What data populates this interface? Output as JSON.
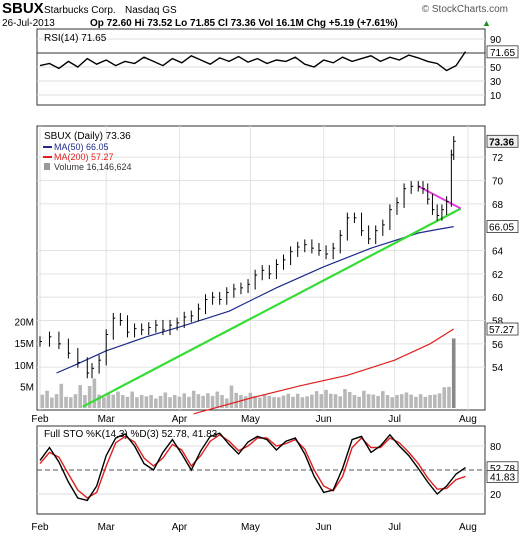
{
  "header": {
    "symbol": "SBUX",
    "company": "Starbucks Corp.",
    "exchange": "Nasdaq GS",
    "watermark": "© StockCharts.com",
    "date": "26-Jul-2013",
    "quote": "Op 72.60  Hi 73.52  Lo 71.85  Cl 73.36  Vol 16.1M  Chg +5.19 (+7.61%)",
    "chg_arrow": "▲"
  },
  "legends": {
    "rsi": "RSI(14) 71.65",
    "price": "SBUX (Daily) 73.36",
    "ma50": "MA(50) 66.05",
    "ma200": "MA(200) 57.27",
    "volume": "Volume 16,146,624",
    "sto": "Full STO %K(14,3) %D(3) 52.78, 41.83"
  },
  "colors": {
    "price_bars": "#000000",
    "ma50": "#1f2a8c",
    "ma200": "#e02020",
    "trendline": "#33dd33",
    "resistance": "#e040e0",
    "volume": "#b8b8b8",
    "rsi_fill": "#3aa63a",
    "sto_k": "#000000",
    "sto_d": "#e02020"
  },
  "chart_data": [
    {
      "type": "line",
      "name": "RSI(14)",
      "ylim": [
        0,
        100
      ],
      "ticks": [
        {
          "label": "90",
          "v": 90
        },
        {
          "label": "71.65",
          "v": 71.65,
          "badge": true
        },
        {
          "label": "50",
          "v": 50
        },
        {
          "label": "30",
          "v": 30
        },
        {
          "label": "10",
          "v": 10
        }
      ],
      "guides": [
        70,
        30
      ],
      "dashed": [
        50
      ],
      "last": 71.65,
      "x": [
        0,
        4,
        8,
        12,
        16,
        20,
        24,
        28,
        32,
        36,
        40,
        44,
        48,
        52,
        56,
        60,
        64,
        68,
        72,
        76,
        80,
        84,
        88,
        92,
        96,
        100,
        104,
        108,
        112,
        116,
        120,
        124,
        128,
        132,
        136,
        140,
        144,
        148,
        152,
        156,
        160,
        164,
        168,
        172,
        176,
        180
      ],
      "values": [
        52,
        55,
        48,
        58,
        50,
        62,
        54,
        60,
        52,
        58,
        55,
        64,
        58,
        52,
        62,
        56,
        66,
        60,
        54,
        63,
        58,
        65,
        57,
        62,
        55,
        60,
        58,
        64,
        54,
        50,
        60,
        56,
        64,
        58,
        62,
        66,
        58,
        64,
        60,
        67,
        63,
        58,
        55,
        45,
        52,
        72
      ]
    },
    {
      "type": "line",
      "name": "SBUX (Daily)",
      "ylim": [
        50.5,
        74.5
      ],
      "ticks": [
        {
          "label": "73.36",
          "v": 73.36,
          "badge": true
        },
        {
          "label": "72",
          "v": 72
        },
        {
          "label": "70",
          "v": 70
        },
        {
          "label": "68",
          "v": 68
        },
        {
          "label": "66.05",
          "v": 66.05,
          "badge": true
        },
        {
          "label": "64",
          "v": 64
        },
        {
          "label": "62",
          "v": 62
        },
        {
          "label": "60",
          "v": 60
        },
        {
          "label": "58",
          "v": 58
        },
        {
          "label": "57.27",
          "v": 57.27,
          "badge": true
        },
        {
          "label": "56",
          "v": 56
        },
        {
          "label": "54",
          "v": 54
        }
      ],
      "x_labels": [
        {
          "label": "Feb",
          "x": 0
        },
        {
          "label": "Mar",
          "x": 28
        },
        {
          "label": "Apr",
          "x": 59
        },
        {
          "label": "May",
          "x": 89
        },
        {
          "label": "Jun",
          "x": 120
        },
        {
          "label": "Jul",
          "x": 150
        },
        {
          "label": "Aug",
          "x": 181
        }
      ],
      "x_max": 184,
      "close": [
        [
          0,
          56.2
        ],
        [
          4,
          56.6
        ],
        [
          8,
          56.0
        ],
        [
          12,
          55.2
        ],
        [
          16,
          54.4
        ],
        [
          20,
          53.5
        ],
        [
          22,
          53.9
        ],
        [
          25,
          54.6
        ],
        [
          28,
          56.8
        ],
        [
          31,
          58.2
        ],
        [
          34,
          58.0
        ],
        [
          37,
          57.0
        ],
        [
          40,
          57.3
        ],
        [
          43,
          57.2
        ],
        [
          46,
          57.4
        ],
        [
          49,
          57.6
        ],
        [
          52,
          57.2
        ],
        [
          55,
          57.6
        ],
        [
          58,
          57.8
        ],
        [
          61,
          58.3
        ],
        [
          64,
          58.4
        ],
        [
          67,
          59.0
        ],
        [
          70,
          59.8
        ],
        [
          73,
          60.0
        ],
        [
          76,
          59.8
        ],
        [
          79,
          60.4
        ],
        [
          82,
          60.7
        ],
        [
          85,
          60.8
        ],
        [
          88,
          61.1
        ],
        [
          91,
          61.9
        ],
        [
          94,
          62.3
        ],
        [
          97,
          62.0
        ],
        [
          100,
          62.8
        ],
        [
          103,
          63.2
        ],
        [
          106,
          63.9
        ],
        [
          109,
          64.3
        ],
        [
          112,
          64.5
        ],
        [
          115,
          64.2
        ],
        [
          118,
          64.0
        ],
        [
          121,
          63.7
        ],
        [
          124,
          64.2
        ],
        [
          127,
          65.3
        ],
        [
          130,
          66.8
        ],
        [
          133,
          66.8
        ],
        [
          136,
          65.7
        ],
        [
          139,
          65.0
        ],
        [
          142,
          65.7
        ],
        [
          145,
          66.2
        ],
        [
          148,
          67.5
        ],
        [
          151,
          68.1
        ],
        [
          154,
          69.3
        ],
        [
          157,
          69.5
        ],
        [
          160,
          69.5
        ],
        [
          162,
          69.3
        ],
        [
          164,
          68.4
        ],
        [
          166,
          67.5
        ],
        [
          168,
          67.0
        ],
        [
          170,
          67.5
        ],
        [
          172,
          68.2
        ],
        [
          174,
          72.2
        ],
        [
          175,
          73.36
        ]
      ],
      "ma50": [
        [
          7,
          53.5
        ],
        [
          15,
          54.2
        ],
        [
          28,
          55.4
        ],
        [
          45,
          56.6
        ],
        [
          60,
          57.5
        ],
        [
          80,
          58.8
        ],
        [
          100,
          60.8
        ],
        [
          120,
          62.6
        ],
        [
          140,
          64.2
        ],
        [
          160,
          65.5
        ],
        [
          168,
          65.8
        ],
        [
          175,
          66.05
        ]
      ],
      "ma200": [
        [
          65,
          50.0
        ],
        [
          90,
          51.4
        ],
        [
          110,
          52.4
        ],
        [
          130,
          53.3
        ],
        [
          150,
          54.6
        ],
        [
          165,
          56.0
        ],
        [
          175,
          57.27
        ]
      ],
      "trendline": [
        [
          18,
          50.6
        ],
        [
          178,
          67.6
        ]
      ],
      "resistance": [
        [
          160,
          69.5
        ],
        [
          178,
          67.6
        ]
      ],
      "volume_ticks": [
        {
          "label": "20M",
          "v": 20
        },
        {
          "label": "15M",
          "v": 15
        },
        {
          "label": "10M",
          "v": 10
        },
        {
          "label": "5M",
          "v": 5
        }
      ],
      "volume_ylim": [
        0,
        25
      ],
      "volume_last": 16.1,
      "volume": [
        [
          1,
          3.1
        ],
        [
          3,
          4.0
        ],
        [
          5,
          2.4
        ],
        [
          7,
          3.2
        ],
        [
          9,
          5.6
        ],
        [
          11,
          2.6
        ],
        [
          13,
          2.5
        ],
        [
          15,
          3.2
        ],
        [
          17,
          5.3
        ],
        [
          19,
          3.0
        ],
        [
          21,
          5.1
        ],
        [
          23,
          6.8
        ],
        [
          25,
          3.1
        ],
        [
          27,
          2.5
        ],
        [
          29,
          3.4
        ],
        [
          31,
          3.1
        ],
        [
          33,
          3.8
        ],
        [
          35,
          3.0
        ],
        [
          37,
          2.6
        ],
        [
          39,
          3.8
        ],
        [
          41,
          2.5
        ],
        [
          43,
          3.0
        ],
        [
          45,
          2.7
        ],
        [
          47,
          3.0
        ],
        [
          49,
          2.2
        ],
        [
          51,
          2.8
        ],
        [
          53,
          3.6
        ],
        [
          55,
          2.5
        ],
        [
          57,
          3.0
        ],
        [
          59,
          2.6
        ],
        [
          61,
          3.4
        ],
        [
          63,
          2.6
        ],
        [
          65,
          4.0
        ],
        [
          67,
          3.2
        ],
        [
          69,
          2.8
        ],
        [
          71,
          3.4
        ],
        [
          73,
          2.8
        ],
        [
          75,
          3.8
        ],
        [
          77,
          3.0
        ],
        [
          79,
          2.2
        ],
        [
          81,
          5.2
        ],
        [
          83,
          3.5
        ],
        [
          85,
          3.0
        ],
        [
          87,
          2.7
        ],
        [
          89,
          3.5
        ],
        [
          91,
          2.8
        ],
        [
          93,
          2.4
        ],
        [
          95,
          3.2
        ],
        [
          97,
          2.8
        ],
        [
          99,
          2.5
        ],
        [
          101,
          2.5
        ],
        [
          103,
          2.9
        ],
        [
          105,
          3.3
        ],
        [
          107,
          2.6
        ],
        [
          109,
          3.3
        ],
        [
          111,
          2.5
        ],
        [
          113,
          2.7
        ],
        [
          115,
          3.1
        ],
        [
          117,
          3.9
        ],
        [
          119,
          3.2
        ],
        [
          121,
          4.2
        ],
        [
          123,
          3.3
        ],
        [
          125,
          3.2
        ],
        [
          127,
          2.7
        ],
        [
          129,
          4.4
        ],
        [
          131,
          3.7
        ],
        [
          133,
          3.0
        ],
        [
          135,
          2.6
        ],
        [
          137,
          4.0
        ],
        [
          139,
          3.2
        ],
        [
          141,
          3.1
        ],
        [
          143,
          2.8
        ],
        [
          145,
          3.9
        ],
        [
          147,
          3.0
        ],
        [
          149,
          2.5
        ],
        [
          151,
          3.0
        ],
        [
          153,
          3.2
        ],
        [
          155,
          3.6
        ],
        [
          157,
          3.1
        ],
        [
          159,
          2.6
        ],
        [
          161,
          3.2
        ],
        [
          163,
          2.6
        ],
        [
          165,
          3.0
        ],
        [
          167,
          3.1
        ],
        [
          169,
          3.4
        ],
        [
          171,
          4.8
        ],
        [
          173,
          4.9
        ],
        [
          175,
          16.1
        ]
      ]
    },
    {
      "type": "line",
      "name": "Full STO %K(14,3) %D(3)",
      "ylim": [
        0,
        100
      ],
      "ticks": [
        {
          "label": "80",
          "v": 80
        },
        {
          "label": "52.78",
          "v": 52.78,
          "badge": true
        },
        {
          "label": "41.83",
          "v": 41.83,
          "badge": true
        },
        {
          "label": "20",
          "v": 20
        }
      ],
      "guides": [
        80,
        20
      ],
      "dashed": [
        50
      ],
      "x": [
        0,
        4,
        8,
        12,
        16,
        20,
        24,
        28,
        32,
        36,
        40,
        44,
        48,
        52,
        56,
        60,
        64,
        68,
        72,
        76,
        80,
        84,
        88,
        92,
        96,
        100,
        104,
        108,
        112,
        116,
        120,
        124,
        128,
        132,
        136,
        140,
        144,
        148,
        152,
        156,
        160,
        164,
        168,
        172,
        176,
        180
      ],
      "k": [
        62,
        78,
        60,
        35,
        15,
        12,
        30,
        68,
        90,
        95,
        80,
        58,
        50,
        72,
        88,
        70,
        50,
        74,
        92,
        96,
        82,
        70,
        85,
        92,
        88,
        75,
        86,
        90,
        70,
        42,
        22,
        25,
        52,
        88,
        92,
        72,
        80,
        94,
        80,
        68,
        52,
        35,
        20,
        30,
        45,
        53
      ],
      "d": [
        58,
        72,
        66,
        45,
        25,
        15,
        22,
        55,
        84,
        92,
        85,
        65,
        55,
        65,
        82,
        75,
        55,
        68,
        86,
        94,
        86,
        74,
        80,
        90,
        90,
        80,
        83,
        88,
        76,
        50,
        30,
        24,
        42,
        78,
        90,
        78,
        78,
        90,
        84,
        72,
        58,
        40,
        26,
        27,
        38,
        42
      ]
    }
  ]
}
